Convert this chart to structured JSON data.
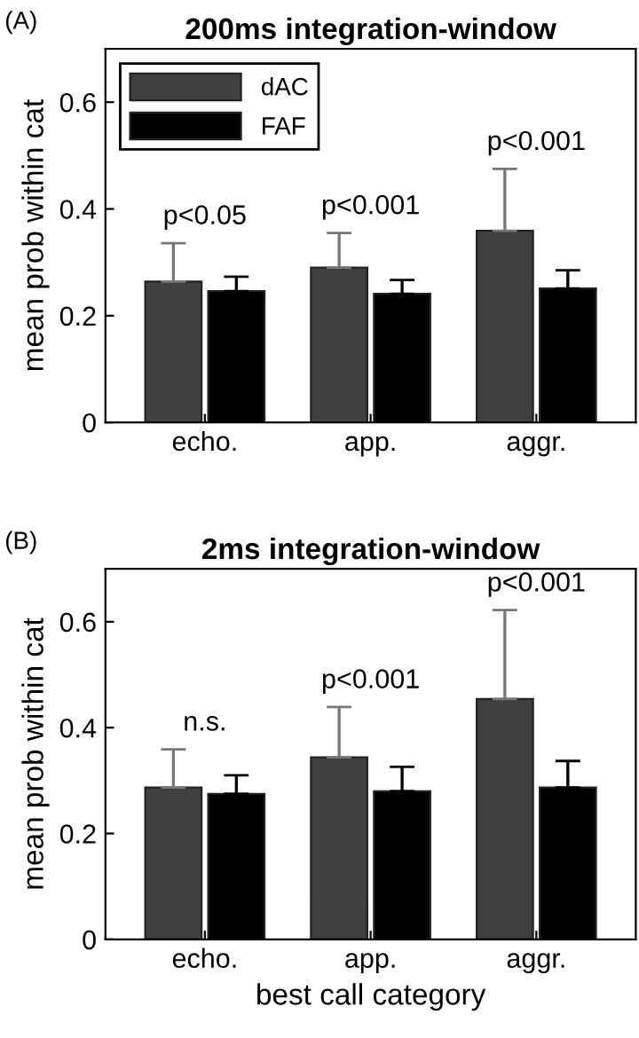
{
  "chart_data": [
    {
      "type": "bar",
      "title": "200ms integration-window",
      "ylabel": "mean prob within cat",
      "categories": [
        "echo.",
        "app.",
        "aggr."
      ],
      "series": [
        {
          "name": "dAC",
          "color": "#404040",
          "values": [
            0.264,
            0.29,
            0.359
          ],
          "errors": [
            [
              0.264,
              0.336
            ],
            [
              0.29,
              0.355
            ],
            [
              0.359,
              0.475
            ]
          ]
        },
        {
          "name": "FAF",
          "color": "#000000",
          "values": [
            0.246,
            0.241,
            0.251
          ],
          "errors": [
            [
              0.246,
              0.273
            ],
            [
              0.241,
              0.267
            ],
            [
              0.251,
              0.285
            ]
          ]
        }
      ],
      "ylim": [
        0,
        0.7
      ],
      "yticks": [
        0,
        0.2,
        0.4,
        0.6
      ],
      "legend": "top left",
      "grid": false,
      "annotations": [
        "(A)",
        "p<0.05",
        "p<0.001",
        "p<0.001"
      ]
    },
    {
      "type": "bar",
      "title": "2ms integration-window",
      "ylabel": "mean prob within cat",
      "xlabel": "best call category",
      "categories": [
        "echo.",
        "app.",
        "aggr."
      ],
      "series": [
        {
          "color": "#404040",
          "values": [
            0.287,
            0.344,
            0.454
          ],
          "errors": [
            [
              0.287,
              0.359
            ],
            [
              0.344,
              0.439
            ],
            [
              0.454,
              0.622
            ]
          ]
        },
        {
          "color": "#000000",
          "values": [
            0.275,
            0.28,
            0.287
          ],
          "errors": [
            [
              0.275,
              0.31
            ],
            [
              0.28,
              0.326
            ],
            [
              0.287,
              0.337
            ]
          ]
        }
      ],
      "ylim": [
        0,
        0.7
      ],
      "yticks": [
        0,
        0.2,
        0.4,
        0.6
      ],
      "legend": false,
      "grid": false,
      "annotations": [
        "(B)",
        "n.s.",
        "p<0.001",
        "p<0.001"
      ]
    }
  ]
}
